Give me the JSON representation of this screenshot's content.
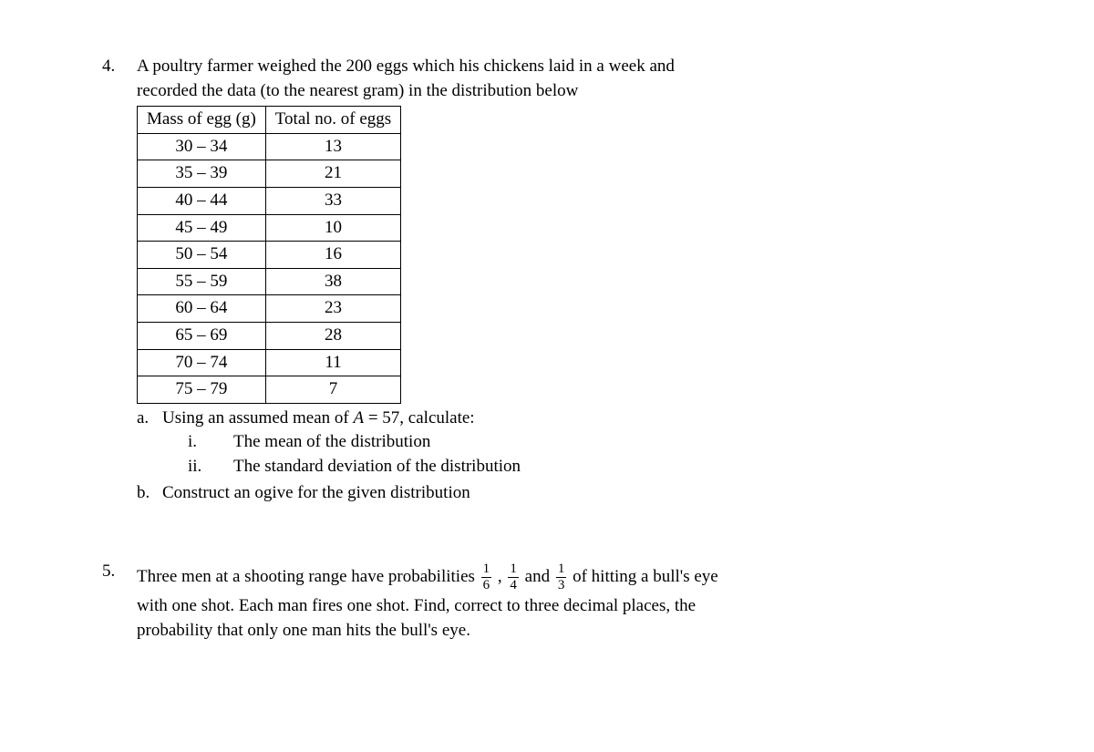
{
  "q4": {
    "number": "4.",
    "intro_l1": "A poultry farmer weighed the 200 eggs which his chickens laid in a week and",
    "intro_l2": "recorded the data (to the nearest gram) in the distribution below",
    "table": {
      "col1": "Mass of egg (g)",
      "col2": "Total no. of eggs",
      "rows": [
        {
          "range": "30 – 34",
          "count": "13"
        },
        {
          "range": "35 – 39",
          "count": "21"
        },
        {
          "range": "40 – 44",
          "count": "33"
        },
        {
          "range": "45 – 49",
          "count": "10"
        },
        {
          "range": "50 – 54",
          "count": "16"
        },
        {
          "range": "55 – 59",
          "count": "38"
        },
        {
          "range": "60 – 64",
          "count": "23"
        },
        {
          "range": "65 – 69",
          "count": "28"
        },
        {
          "range": "70 – 74",
          "count": "11"
        },
        {
          "range": "75 – 79",
          "count": "7"
        }
      ]
    },
    "a": {
      "letter": "a.",
      "text_before_A": "Using an assumed mean of ",
      "A_var": "A",
      "text_after_A": " = 57, calculate:",
      "i": {
        "num": "i.",
        "text": "The mean of the distribution"
      },
      "ii": {
        "num": "ii.",
        "text": "The standard deviation of the distribution"
      }
    },
    "b": {
      "letter": "b.",
      "text": "Construct an ogive for the given distribution"
    }
  },
  "q5": {
    "number": "5.",
    "l1_before": "Three men at a shooting range have probabilities ",
    "f1n": "1",
    "f1d": "6",
    "comma1": " , ",
    "f2n": "1",
    "f2d": "4",
    "and": " and ",
    "f3n": "1",
    "f3d": "3",
    "l1_after": " of hitting a bull's eye",
    "l2": "with one shot. Each man fires one shot. Find, correct to three decimal places, the",
    "l3": "probability that only one man hits the bull's eye."
  }
}
